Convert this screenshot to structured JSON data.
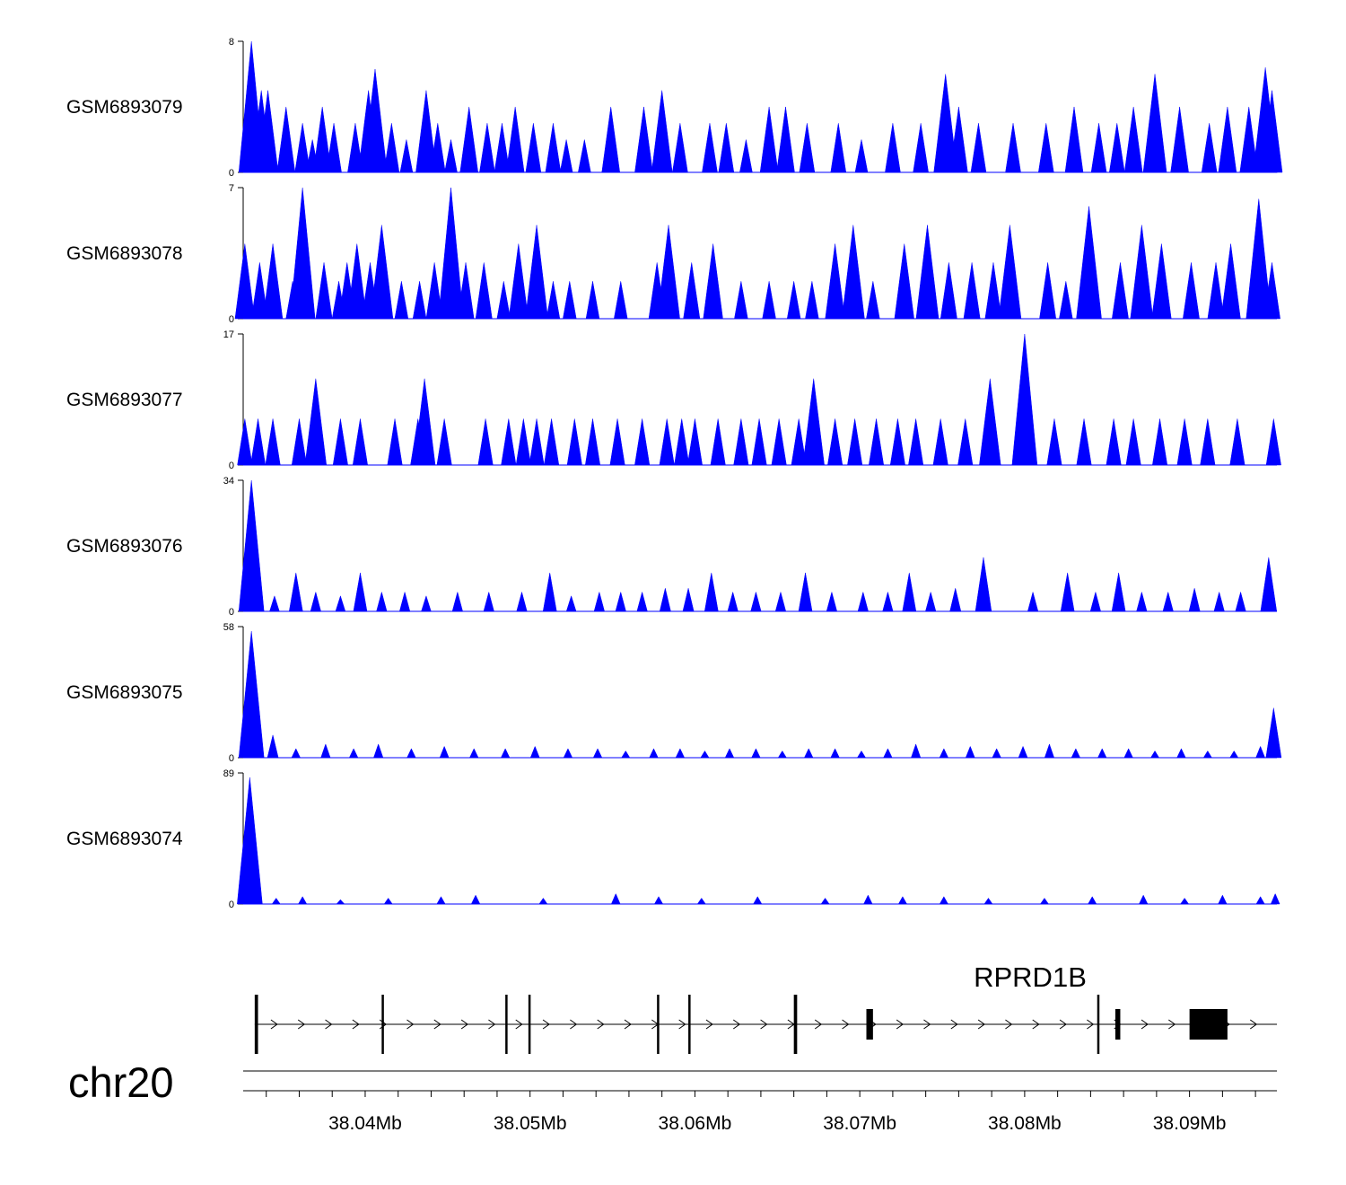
{
  "chart_data": {
    "type": "area",
    "title": "",
    "colors": {
      "signal": "#0000ff",
      "gene": "#000000"
    },
    "genome_axis": {
      "chromosome": "chr20",
      "range_mb": [
        38.0326,
        38.0953
      ],
      "ticks": [
        38.04,
        38.05,
        38.06,
        38.07,
        38.08,
        38.09
      ],
      "tick_labels": [
        "38.04Mb",
        "38.05Mb",
        "38.06Mb",
        "38.07Mb",
        "38.08Mb",
        "38.09Mb"
      ]
    },
    "tracks": [
      {
        "name": "GSM6893079",
        "ymin": 0,
        "ymax": 8,
        "peaks": [
          [
            38.0331,
            8
          ],
          [
            38.0337,
            5
          ],
          [
            38.0341,
            5
          ],
          [
            38.0352,
            4
          ],
          [
            38.0362,
            3
          ],
          [
            38.0368,
            2
          ],
          [
            38.0374,
            4
          ],
          [
            38.0381,
            3
          ],
          [
            38.0394,
            3
          ],
          [
            38.0402,
            5
          ],
          [
            38.0406,
            6.3
          ],
          [
            38.0416,
            3
          ],
          [
            38.0425,
            2
          ],
          [
            38.0437,
            5
          ],
          [
            38.0444,
            3
          ],
          [
            38.0452,
            2
          ],
          [
            38.0463,
            4
          ],
          [
            38.0474,
            3
          ],
          [
            38.0483,
            3
          ],
          [
            38.0491,
            4
          ],
          [
            38.0502,
            3
          ],
          [
            38.0514,
            3
          ],
          [
            38.0522,
            2
          ],
          [
            38.0533,
            2
          ],
          [
            38.0549,
            4
          ],
          [
            38.0569,
            4
          ],
          [
            38.058,
            5
          ],
          [
            38.0591,
            3
          ],
          [
            38.0609,
            3
          ],
          [
            38.0619,
            3
          ],
          [
            38.0631,
            2
          ],
          [
            38.0645,
            4
          ],
          [
            38.0655,
            4
          ],
          [
            38.0668,
            3
          ],
          [
            38.0687,
            3
          ],
          [
            38.0701,
            2
          ],
          [
            38.072,
            3
          ],
          [
            38.0737,
            3
          ],
          [
            38.0752,
            6
          ],
          [
            38.076,
            4
          ],
          [
            38.0772,
            3
          ],
          [
            38.0793,
            3
          ],
          [
            38.0813,
            3
          ],
          [
            38.083,
            4
          ],
          [
            38.0845,
            3
          ],
          [
            38.0856,
            3
          ],
          [
            38.0866,
            4
          ],
          [
            38.0879,
            6
          ],
          [
            38.0894,
            4
          ],
          [
            38.0912,
            3
          ],
          [
            38.0923,
            4
          ],
          [
            38.0936,
            4
          ],
          [
            38.0946,
            6.4
          ],
          [
            38.095,
            5
          ]
        ]
      },
      {
        "name": "GSM6893078",
        "ymin": 0,
        "ymax": 7,
        "peaks": [
          [
            38.0327,
            4
          ],
          [
            38.0336,
            3
          ],
          [
            38.0344,
            4
          ],
          [
            38.0356,
            2
          ],
          [
            38.0362,
            7
          ],
          [
            38.0375,
            3
          ],
          [
            38.0384,
            2
          ],
          [
            38.0389,
            3
          ],
          [
            38.0395,
            4
          ],
          [
            38.0403,
            3
          ],
          [
            38.041,
            5
          ],
          [
            38.0422,
            2
          ],
          [
            38.0433,
            2
          ],
          [
            38.0442,
            3
          ],
          [
            38.0452,
            7
          ],
          [
            38.0461,
            3
          ],
          [
            38.0472,
            3
          ],
          [
            38.0484,
            2
          ],
          [
            38.0493,
            4
          ],
          [
            38.0504,
            5
          ],
          [
            38.0514,
            2
          ],
          [
            38.0524,
            2
          ],
          [
            38.0538,
            2
          ],
          [
            38.0555,
            2
          ],
          [
            38.0577,
            3
          ],
          [
            38.0584,
            5
          ],
          [
            38.0598,
            3
          ],
          [
            38.0611,
            4
          ],
          [
            38.0628,
            2
          ],
          [
            38.0645,
            2
          ],
          [
            38.066,
            2
          ],
          [
            38.0671,
            2
          ],
          [
            38.0685,
            4
          ],
          [
            38.0696,
            5
          ],
          [
            38.0708,
            2
          ],
          [
            38.0727,
            4
          ],
          [
            38.0741,
            5
          ],
          [
            38.0754,
            3
          ],
          [
            38.0768,
            3
          ],
          [
            38.0781,
            3
          ],
          [
            38.0791,
            5
          ],
          [
            38.0814,
            3
          ],
          [
            38.0825,
            2
          ],
          [
            38.0839,
            6
          ],
          [
            38.0858,
            3
          ],
          [
            38.0871,
            5
          ],
          [
            38.0883,
            4
          ],
          [
            38.0901,
            3
          ],
          [
            38.0916,
            3
          ],
          [
            38.0925,
            4
          ],
          [
            38.0942,
            6.4
          ],
          [
            38.095,
            3
          ]
        ]
      },
      {
        "name": "GSM6893077",
        "ymin": 0,
        "ymax": 17,
        "peaks": [
          [
            38.0327,
            6
          ],
          [
            38.0335,
            6
          ],
          [
            38.0344,
            6
          ],
          [
            38.036,
            6
          ],
          [
            38.037,
            11.2
          ],
          [
            38.0385,
            6
          ],
          [
            38.0397,
            6
          ],
          [
            38.0418,
            6
          ],
          [
            38.0432,
            6
          ],
          [
            38.0436,
            11.2
          ],
          [
            38.0448,
            6
          ],
          [
            38.0473,
            6
          ],
          [
            38.0487,
            6
          ],
          [
            38.0496,
            6
          ],
          [
            38.0504,
            6
          ],
          [
            38.0513,
            6
          ],
          [
            38.0527,
            6
          ],
          [
            38.0538,
            6
          ],
          [
            38.0553,
            6
          ],
          [
            38.0568,
            6
          ],
          [
            38.0583,
            6
          ],
          [
            38.0592,
            6
          ],
          [
            38.06,
            6
          ],
          [
            38.0614,
            6
          ],
          [
            38.0628,
            6
          ],
          [
            38.0639,
            6
          ],
          [
            38.0651,
            6
          ],
          [
            38.0663,
            6
          ],
          [
            38.0672,
            11.2
          ],
          [
            38.0685,
            6
          ],
          [
            38.0697,
            6
          ],
          [
            38.071,
            6
          ],
          [
            38.0723,
            6
          ],
          [
            38.0734,
            6
          ],
          [
            38.0749,
            6
          ],
          [
            38.0764,
            6
          ],
          [
            38.0779,
            11.2
          ],
          [
            38.08,
            17
          ],
          [
            38.0818,
            6
          ],
          [
            38.0836,
            6
          ],
          [
            38.0854,
            6
          ],
          [
            38.0866,
            6
          ],
          [
            38.0882,
            6
          ],
          [
            38.0897,
            6
          ],
          [
            38.0911,
            6
          ],
          [
            38.0929,
            6
          ],
          [
            38.0951,
            6
          ]
        ]
      },
      {
        "name": "GSM6893076",
        "ymin": 0,
        "ymax": 34,
        "peaks": [
          [
            38.0331,
            34
          ],
          [
            38.0345,
            4
          ],
          [
            38.0358,
            10
          ],
          [
            38.037,
            5
          ],
          [
            38.0385,
            4
          ],
          [
            38.0397,
            10
          ],
          [
            38.041,
            5
          ],
          [
            38.0424,
            5
          ],
          [
            38.0437,
            4
          ],
          [
            38.0456,
            5
          ],
          [
            38.0475,
            5
          ],
          [
            38.0495,
            5
          ],
          [
            38.0512,
            10
          ],
          [
            38.0525,
            4
          ],
          [
            38.0542,
            5
          ],
          [
            38.0555,
            5
          ],
          [
            38.0568,
            5
          ],
          [
            38.0582,
            6
          ],
          [
            38.0596,
            6
          ],
          [
            38.061,
            10
          ],
          [
            38.0623,
            5
          ],
          [
            38.0637,
            5
          ],
          [
            38.0652,
            5
          ],
          [
            38.0667,
            10
          ],
          [
            38.0683,
            5
          ],
          [
            38.0702,
            5
          ],
          [
            38.0717,
            5
          ],
          [
            38.073,
            10
          ],
          [
            38.0743,
            5
          ],
          [
            38.0758,
            6
          ],
          [
            38.0775,
            14
          ],
          [
            38.0805,
            5
          ],
          [
            38.0826,
            10
          ],
          [
            38.0843,
            5
          ],
          [
            38.0857,
            10
          ],
          [
            38.0871,
            5
          ],
          [
            38.0887,
            5
          ],
          [
            38.0903,
            6
          ],
          [
            38.0918,
            5
          ],
          [
            38.0931,
            5
          ],
          [
            38.0948,
            14
          ]
        ]
      },
      {
        "name": "GSM6893075",
        "ymin": 0,
        "ymax": 58,
        "peaks": [
          [
            38.0331,
            56
          ],
          [
            38.0344,
            10
          ],
          [
            38.0358,
            4
          ],
          [
            38.0376,
            6
          ],
          [
            38.0393,
            4
          ],
          [
            38.0408,
            6
          ],
          [
            38.0428,
            4
          ],
          [
            38.0448,
            5
          ],
          [
            38.0466,
            4
          ],
          [
            38.0485,
            4
          ],
          [
            38.0503,
            5
          ],
          [
            38.0523,
            4
          ],
          [
            38.0541,
            4
          ],
          [
            38.0558,
            3
          ],
          [
            38.0575,
            4
          ],
          [
            38.0591,
            4
          ],
          [
            38.0606,
            3
          ],
          [
            38.0621,
            4
          ],
          [
            38.0637,
            4
          ],
          [
            38.0653,
            3
          ],
          [
            38.0669,
            4
          ],
          [
            38.0685,
            4
          ],
          [
            38.0701,
            3
          ],
          [
            38.0717,
            4
          ],
          [
            38.0734,
            6
          ],
          [
            38.0751,
            4
          ],
          [
            38.0767,
            5
          ],
          [
            38.0783,
            4
          ],
          [
            38.0799,
            5
          ],
          [
            38.0815,
            6
          ],
          [
            38.0831,
            4
          ],
          [
            38.0847,
            4
          ],
          [
            38.0863,
            4
          ],
          [
            38.0879,
            3
          ],
          [
            38.0895,
            4
          ],
          [
            38.0911,
            3
          ],
          [
            38.0927,
            3
          ],
          [
            38.0943,
            5
          ],
          [
            38.0951,
            22
          ]
        ]
      },
      {
        "name": "GSM6893074",
        "ymin": 0,
        "ymax": 89,
        "peaks": [
          [
            38.033,
            86
          ],
          [
            38.0335,
            6
          ],
          [
            38.0346,
            4
          ],
          [
            38.0362,
            5
          ],
          [
            38.0385,
            3
          ],
          [
            38.0414,
            4
          ],
          [
            38.0446,
            5
          ],
          [
            38.0467,
            6
          ],
          [
            38.0508,
            4
          ],
          [
            38.0552,
            7
          ],
          [
            38.0578,
            5
          ],
          [
            38.0604,
            4
          ],
          [
            38.0638,
            5
          ],
          [
            38.0679,
            4
          ],
          [
            38.0705,
            6
          ],
          [
            38.0726,
            5
          ],
          [
            38.0751,
            5
          ],
          [
            38.0778,
            4
          ],
          [
            38.0812,
            4
          ],
          [
            38.0841,
            5
          ],
          [
            38.0872,
            6
          ],
          [
            38.0897,
            4
          ],
          [
            38.092,
            6
          ],
          [
            38.0943,
            5
          ],
          [
            38.0952,
            7
          ]
        ]
      }
    ],
    "gene": {
      "name": "RPRD1B",
      "strand": "+",
      "start_mb": 38.0333,
      "end_mb": 38.0953,
      "exons": [
        [
          38.0333,
          38.0335
        ],
        [
          38.041,
          38.0411
        ],
        [
          38.0485,
          38.0486
        ],
        [
          38.0499,
          38.05
        ],
        [
          38.0577,
          38.0578
        ],
        [
          38.0596,
          38.0597
        ],
        [
          38.066,
          38.0662
        ],
        [
          38.0704,
          38.0708
        ],
        [
          38.0844,
          38.0845
        ],
        [
          38.0855,
          38.0858
        ],
        [
          38.09,
          38.0923
        ]
      ]
    }
  }
}
